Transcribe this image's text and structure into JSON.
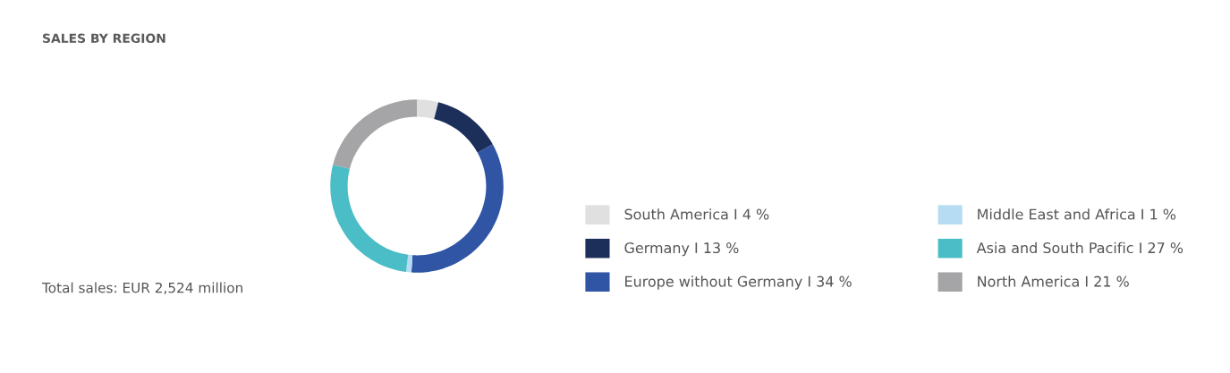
{
  "chart_data": {
    "type": "donut",
    "title": "SALES BY REGION",
    "categories": [
      "South America I 4 %",
      "Germany I 13 %",
      "Europe without Germany I 34 %",
      "Middle East and Africa I 1 %",
      "Asia and South Pacific I 27 %",
      "North America I 21 %"
    ],
    "values": [
      4,
      13,
      34,
      1,
      27,
      21
    ],
    "colors": [
      "#e0e0e0",
      "#1c2f5a",
      "#2f55a4",
      "#b5dcf2",
      "#4bbdc6",
      "#a5a4a6"
    ],
    "legend": "right",
    "annotations": [
      "Total sales: EUR 2,524 million"
    ]
  }
}
